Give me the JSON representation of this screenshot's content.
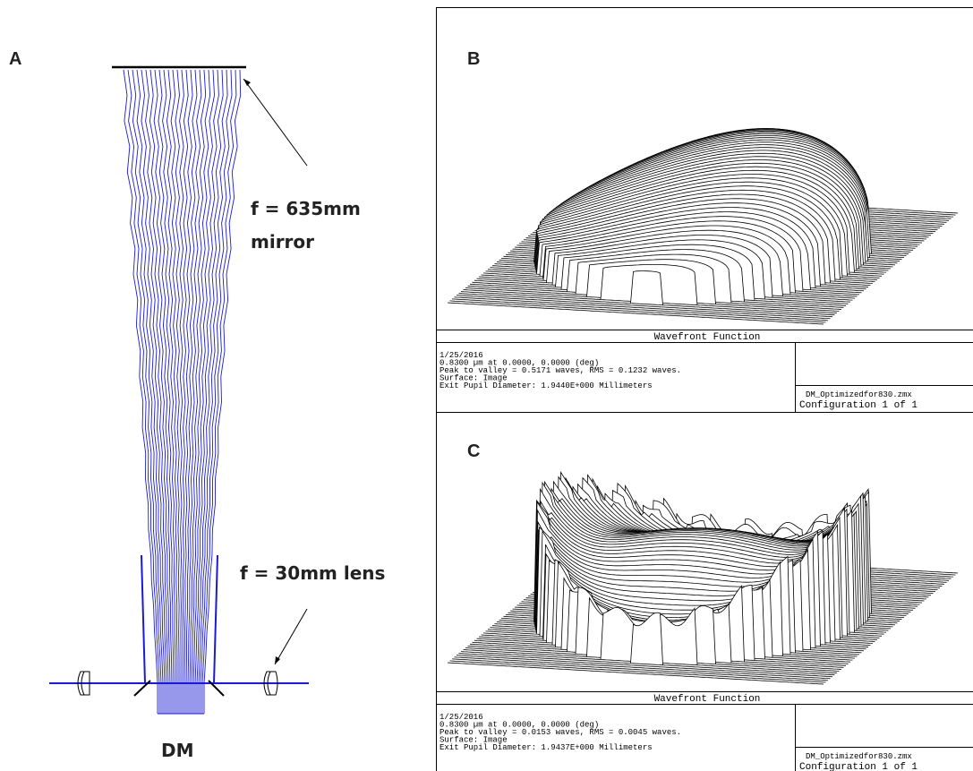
{
  "panel_a": {
    "label": "A",
    "mirror_label": [
      "f = 635mm",
      "mirror"
    ],
    "lens_label": "f = 30mm lens",
    "dm_label": "DM"
  },
  "panel_b": {
    "label": "B",
    "plot_title": "Wavefront Function",
    "info": [
      "1/25/2016",
      "0.8300 µm at 0.0000, 0.0000 (deg)",
      "Peak to valley = 0.5171 waves, RMS = 0.1232 waves.",
      "Surface: Image",
      "Exit Pupil Diameter: 1.9440E+000 Millimeters"
    ],
    "file": "DM_Optimizedfor830.zmx",
    "configuration": "Configuration 1 of 1"
  },
  "panel_c": {
    "label": "C",
    "plot_title": "Wavefront Function",
    "info": [
      "1/25/2016",
      "0.8300 µm at 0.0000, 0.0000 (deg)",
      "Peak to valley = 0.0153 waves, RMS = 0.0045 waves.",
      "Surface: Image",
      "Exit Pupil Diameter: 1.9437E+000 Millimeters"
    ],
    "file": "DM_Optimizedfor830.zmx",
    "configuration": "Configuration 1 of 1"
  }
}
